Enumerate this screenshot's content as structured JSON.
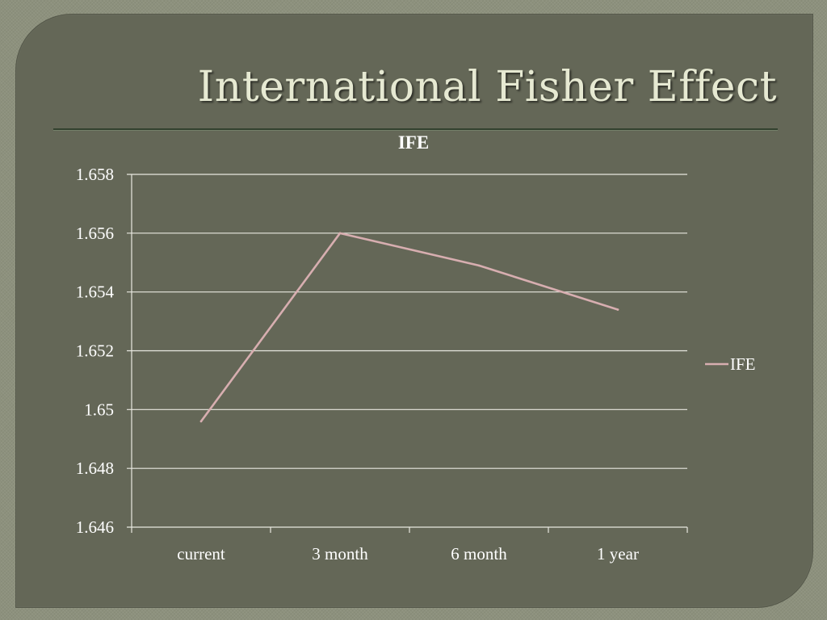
{
  "slide": {
    "title": "International Fisher Effect"
  },
  "colors": {
    "panel_bg": "#646757",
    "title_text": "#e6e9d2",
    "gridline": "#e8e8e0",
    "series_line": "#d7aeb0",
    "text": "#ffffff"
  },
  "chart_data": {
    "type": "line",
    "title": "IFE",
    "categories": [
      "current",
      "3 month",
      "6 month",
      "1 year"
    ],
    "series": [
      {
        "name": "IFE",
        "values": [
          1.6496,
          1.656,
          1.6549,
          1.6534
        ]
      }
    ],
    "ylim": [
      1.646,
      1.658
    ],
    "yticks": [
      1.646,
      1.648,
      1.65,
      1.652,
      1.654,
      1.656,
      1.658
    ],
    "ytick_labels": [
      "1.646",
      "1.648",
      "1.65",
      "1.652",
      "1.654",
      "1.656",
      "1.658"
    ],
    "grid": true,
    "legend_position": "right"
  }
}
